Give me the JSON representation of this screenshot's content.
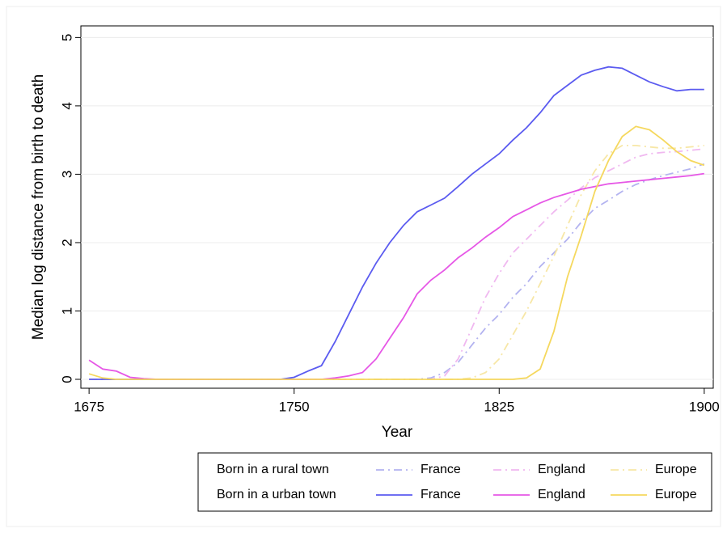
{
  "chart_data": {
    "type": "line",
    "x_label": "Year",
    "y_label": "Median log distance from birth to death",
    "xlim": [
      1672,
      1903.3
    ],
    "ylim": [
      -0.13,
      5.17
    ],
    "xticks": [
      1675,
      1750,
      1825,
      1900
    ],
    "yticks": [
      0,
      1,
      2,
      3,
      4,
      5
    ],
    "grid": true,
    "legend": {
      "position": "bottom",
      "rows": [
        "Born in a rural town",
        "Born in a urban town"
      ]
    },
    "x": [
      1675,
      1680,
      1685,
      1690,
      1695,
      1700,
      1705,
      1710,
      1715,
      1720,
      1725,
      1730,
      1735,
      1740,
      1745,
      1750,
      1755,
      1760,
      1765,
      1770,
      1775,
      1780,
      1785,
      1790,
      1795,
      1800,
      1805,
      1810,
      1815,
      1820,
      1825,
      1830,
      1835,
      1840,
      1845,
      1850,
      1855,
      1860,
      1865,
      1870,
      1875,
      1880,
      1885,
      1890,
      1895,
      1900
    ],
    "series": [
      {
        "name": "France",
        "color": "#b3b3f0",
        "dash": true,
        "values": [
          0,
          0,
          0,
          0,
          0,
          0,
          0,
          0,
          0,
          0,
          0,
          0,
          0,
          0,
          0,
          0,
          0,
          0,
          0,
          0,
          0,
          0,
          0,
          0,
          0,
          0.02,
          0.1,
          0.25,
          0.5,
          0.75,
          0.95,
          1.2,
          1.4,
          1.65,
          1.85,
          2.05,
          2.3,
          2.5,
          2.62,
          2.75,
          2.85,
          2.92,
          2.98,
          3.03,
          3.08,
          3.15
        ]
      },
      {
        "name": "England",
        "color": "#f0b8f0",
        "dash": true,
        "values": [
          0,
          0,
          0,
          0,
          0,
          0,
          0,
          0,
          0,
          0,
          0,
          0,
          0,
          0,
          0,
          0,
          0,
          0,
          0,
          0,
          0,
          0,
          0,
          0,
          0,
          0,
          0.05,
          0.3,
          0.75,
          1.2,
          1.55,
          1.85,
          2.05,
          2.25,
          2.45,
          2.62,
          2.8,
          2.95,
          3.05,
          3.15,
          3.25,
          3.3,
          3.32,
          3.33,
          3.35,
          3.37
        ]
      },
      {
        "name": "Europe",
        "color": "#f7e7a6",
        "dash": true,
        "values": [
          0,
          0,
          0,
          0,
          0,
          0,
          0,
          0,
          0,
          0,
          0,
          0,
          0,
          0,
          0,
          0,
          0,
          0,
          0,
          0,
          0,
          0,
          0,
          0,
          0,
          0,
          0,
          0,
          0.02,
          0.1,
          0.3,
          0.65,
          1.0,
          1.4,
          1.8,
          2.25,
          2.7,
          3.05,
          3.3,
          3.42,
          3.42,
          3.4,
          3.38,
          3.38,
          3.4,
          3.42
        ]
      },
      {
        "name": "France",
        "color": "#5b5bf0",
        "dash": false,
        "values": [
          0,
          0,
          0,
          0,
          0,
          0,
          0,
          0,
          0,
          0,
          0,
          0,
          0,
          0,
          0,
          0.03,
          0.12,
          0.2,
          0.55,
          0.95,
          1.35,
          1.7,
          2.0,
          2.25,
          2.45,
          2.55,
          2.65,
          2.82,
          3.0,
          3.15,
          3.3,
          3.5,
          3.68,
          3.9,
          4.15,
          4.3,
          4.45,
          4.52,
          4.57,
          4.55,
          4.45,
          4.35,
          4.28,
          4.22,
          4.24,
          4.24
        ]
      },
      {
        "name": "England",
        "color": "#e657e6",
        "dash": false,
        "values": [
          0.28,
          0.15,
          0.12,
          0.03,
          0.01,
          0,
          0,
          0,
          0,
          0,
          0,
          0,
          0,
          0,
          0,
          0,
          0,
          0,
          0.02,
          0.05,
          0.1,
          0.3,
          0.6,
          0.9,
          1.25,
          1.45,
          1.6,
          1.78,
          1.92,
          2.08,
          2.22,
          2.38,
          2.48,
          2.58,
          2.66,
          2.72,
          2.78,
          2.82,
          2.86,
          2.88,
          2.9,
          2.92,
          2.94,
          2.96,
          2.98,
          3.01
        ]
      },
      {
        "name": "Europe",
        "color": "#f5d85e",
        "dash": false,
        "values": [
          0.08,
          0.02,
          0,
          0,
          0,
          0,
          0,
          0,
          0,
          0,
          0,
          0,
          0,
          0,
          0,
          0,
          0,
          0,
          0,
          0,
          0,
          0,
          0,
          0,
          0,
          0,
          0,
          0,
          0,
          0,
          0,
          0,
          0.02,
          0.15,
          0.7,
          1.5,
          2.1,
          2.75,
          3.2,
          3.55,
          3.7,
          3.65,
          3.5,
          3.33,
          3.2,
          3.13
        ]
      }
    ]
  }
}
